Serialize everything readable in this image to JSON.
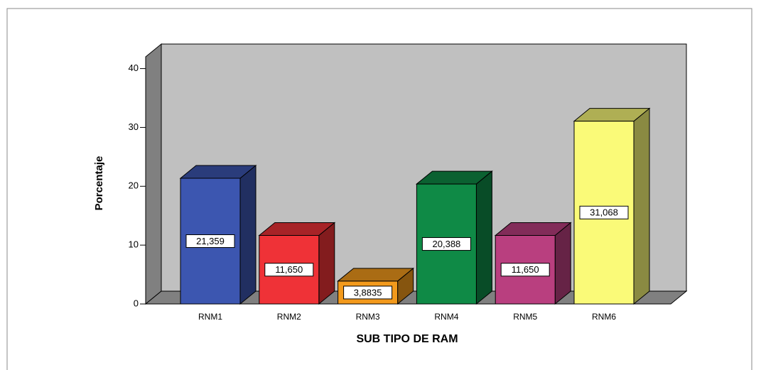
{
  "chart_data": {
    "type": "bar3d",
    "y_axis_label": "Porcentaje",
    "x_axis_label": "SUB TIPO DE RAM",
    "categories": [
      "RNM1",
      "RNM2",
      "RNM3",
      "RNM4",
      "RNM5",
      "RNM6"
    ],
    "values": [
      21.359,
      11.65,
      3.8835,
      20.388,
      11.65,
      31.068
    ],
    "value_labels": [
      "21,359",
      "11,650",
      "3,8835",
      "20,388",
      "11,650",
      "31,068"
    ],
    "colors": [
      "#3c56b0",
      "#ef3237",
      "#f39a1c",
      "#0f8a46",
      "#b93f7f",
      "#fafa78"
    ],
    "ylim": [
      0,
      42
    ],
    "yticks": [
      0,
      10,
      20,
      30,
      40
    ]
  }
}
